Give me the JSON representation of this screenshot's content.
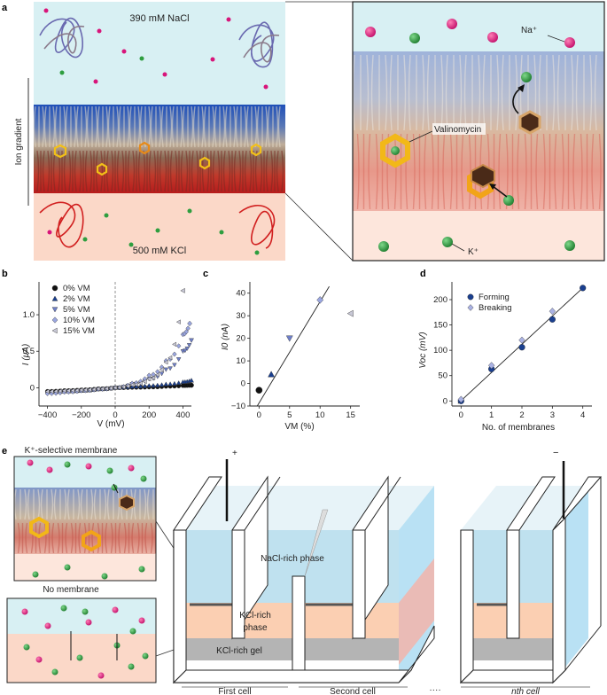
{
  "panels": {
    "a": "a",
    "b": "b",
    "c": "c",
    "d": "d",
    "e": "e"
  },
  "panel_a": {
    "top_label": "390 mM NaCl",
    "bottom_label": "500 mM KCl",
    "gradient_label": "Ion gradient",
    "na_label": "Na⁺",
    "k_label": "K⁺",
    "valinomycin_label": "Valinomycin"
  },
  "panel_e": {
    "membrane_title": "K⁺-selective membrane",
    "no_membrane_title": "No membrane",
    "nacl_phase": "NaCl-rich phase",
    "kcl_phase_1": "KCl-rich",
    "kcl_phase_2": "phase",
    "kcl_gel": "KCl-rich gel",
    "plus": "+",
    "minus": "−",
    "first_cell": "First cell",
    "second_cell": "Second cell",
    "dots": "····",
    "nth_cell": "nth cell"
  },
  "colors": {
    "water": "#d8f0f3",
    "kcl": "#fbd8c8",
    "na": "#d8157a",
    "k": "#2e9e3f",
    "lipid_top": "#2b59b8",
    "lipid_bottom": "#c62828"
  },
  "chart_data": [
    {
      "panel": "b",
      "type": "scatter",
      "xlabel": "V (mV)",
      "ylabel": "I (μA)",
      "xlim": [
        -450,
        450
      ],
      "ylim": [
        -0.25,
        1.45
      ],
      "xticks": [
        -400,
        -200,
        0,
        200,
        400
      ],
      "yticks": [
        0,
        0.5,
        1.0
      ],
      "ytick_labels": [
        "0",
        "0.5",
        "1.0"
      ],
      "series": [
        {
          "name": "0% VM",
          "marker": "circle",
          "color": "#111111",
          "x": [
            -400,
            -300,
            -200,
            -100,
            0,
            100,
            200,
            300,
            400,
            450
          ],
          "y": [
            -0.05,
            -0.04,
            -0.03,
            -0.015,
            0,
            0.005,
            0.01,
            0.02,
            0.03,
            0.035
          ]
        },
        {
          "name": "2% VM",
          "marker": "triangle-up",
          "color": "#1a3f8f",
          "x": [
            -400,
            -300,
            -200,
            -100,
            0,
            100,
            200,
            300,
            400,
            450
          ],
          "y": [
            -0.06,
            -0.05,
            -0.04,
            -0.02,
            0,
            0.015,
            0.03,
            0.05,
            0.08,
            0.1
          ]
        },
        {
          "name": "5% VM",
          "marker": "triangle-down",
          "color": "#6e7fc9",
          "x": [
            -400,
            -300,
            -200,
            -100,
            0,
            100,
            200,
            300,
            400,
            450
          ],
          "y": [
            -0.07,
            -0.05,
            -0.04,
            -0.02,
            0,
            0.05,
            0.12,
            0.25,
            0.5,
            0.65
          ]
        },
        {
          "name": "10% VM",
          "marker": "diamond",
          "color": "#9aa6e0",
          "x": [
            -400,
            -300,
            -200,
            -100,
            0,
            100,
            200,
            300,
            400,
            440
          ],
          "y": [
            -0.08,
            -0.06,
            -0.04,
            -0.02,
            0,
            0.06,
            0.17,
            0.37,
            0.73,
            0.88
          ]
        },
        {
          "name": "15% VM",
          "marker": "triangle-left",
          "color": "#c8c8d6",
          "x": [
            -400,
            -300,
            -200,
            -100,
            0,
            100,
            200,
            300,
            400
          ],
          "y": [
            -0.05,
            -0.04,
            -0.03,
            -0.015,
            0,
            0.04,
            0.12,
            0.35,
            1.33
          ]
        }
      ]
    },
    {
      "panel": "c",
      "type": "scatter",
      "xlabel": "VM (%)",
      "ylabel": "I0 (nA)",
      "xlim": [
        -1.5,
        16.5
      ],
      "ylim": [
        -10,
        45
      ],
      "xticks": [
        0,
        5,
        10,
        15
      ],
      "yticks": [
        -10,
        0,
        10,
        20,
        30,
        40
      ],
      "points": [
        {
          "x": 0,
          "y": -3,
          "marker": "circle",
          "color": "#111111"
        },
        {
          "x": 2,
          "y": 4,
          "marker": "triangle-up",
          "color": "#1a3f8f"
        },
        {
          "x": 5,
          "y": 20,
          "marker": "triangle-down",
          "color": "#6e7fc9"
        },
        {
          "x": 10,
          "y": 37,
          "marker": "diamond",
          "color": "#9aa6e0"
        },
        {
          "x": 15,
          "y": 31,
          "marker": "triangle-left",
          "color": "#c8c8d6"
        }
      ],
      "fit_line": [
        [
          -0.3,
          -10
        ],
        [
          11.5,
          43
        ]
      ]
    },
    {
      "panel": "d",
      "type": "scatter",
      "xlabel": "No. of membranes",
      "ylabel": "Voc (mV)",
      "xlim": [
        -0.3,
        4.3
      ],
      "ylim": [
        -10,
        235
      ],
      "xticks": [
        0,
        1,
        2,
        3,
        4
      ],
      "yticks": [
        0,
        50,
        100,
        150,
        200
      ],
      "series": [
        {
          "name": "Forming",
          "marker": "circle",
          "color": "#1a3f8f",
          "x": [
            0,
            1,
            2,
            3,
            4
          ],
          "y": [
            0,
            63,
            106,
            161,
            223
          ]
        },
        {
          "name": "Breaking",
          "marker": "diamond",
          "color": "#aab2e4",
          "x": [
            0,
            1,
            2,
            3
          ],
          "y": [
            3,
            70,
            120,
            177
          ]
        }
      ],
      "fit_line": [
        [
          -0.1,
          -5
        ],
        [
          4.05,
          226
        ]
      ]
    }
  ]
}
